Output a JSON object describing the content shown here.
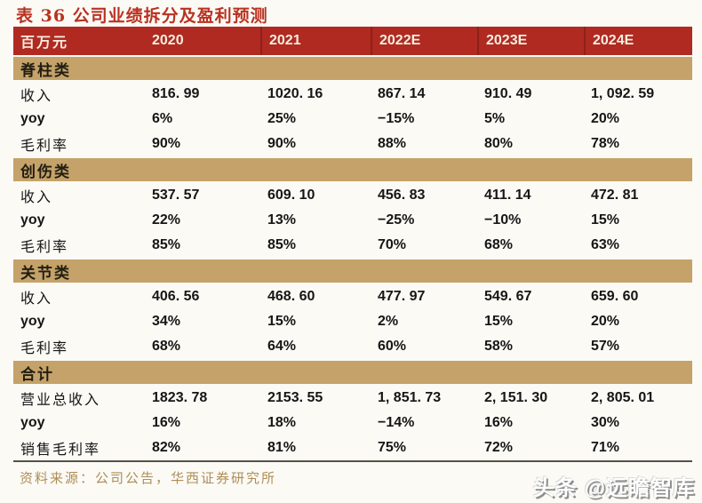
{
  "title": "表 36 公司业绩拆分及盈利预测",
  "table": {
    "unit_label": "百万元",
    "year_headers": [
      "2020",
      "2021",
      "2022E",
      "2023E",
      "2024E"
    ],
    "sections": [
      {
        "name": "脊柱类",
        "rows": [
          {
            "label": "收入",
            "values": [
              "816. 99",
              "1020. 16",
              "867. 14",
              "910. 49",
              "1, 092. 59"
            ]
          },
          {
            "label": "yoy",
            "values": [
              "6%",
              "25%",
              "−15%",
              "5%",
              "20%"
            ]
          },
          {
            "label": "毛利率",
            "values": [
              "90%",
              "90%",
              "88%",
              "80%",
              "78%"
            ]
          }
        ]
      },
      {
        "name": "创伤类",
        "rows": [
          {
            "label": "收入",
            "values": [
              "537. 57",
              "609. 10",
              "456. 83",
              "411. 14",
              "472. 81"
            ]
          },
          {
            "label": "yoy",
            "values": [
              "22%",
              "13%",
              "−25%",
              "−10%",
              "15%"
            ]
          },
          {
            "label": "毛利率",
            "values": [
              "85%",
              "85%",
              "70%",
              "68%",
              "63%"
            ]
          }
        ]
      },
      {
        "name": "关节类",
        "rows": [
          {
            "label": "收入",
            "values": [
              "406. 56",
              "468. 60",
              "477. 97",
              "549. 67",
              "659. 60"
            ]
          },
          {
            "label": "yoy",
            "values": [
              "34%",
              "15%",
              "2%",
              "15%",
              "20%"
            ]
          },
          {
            "label": "毛利率",
            "values": [
              "68%",
              "64%",
              "60%",
              "58%",
              "57%"
            ]
          }
        ]
      },
      {
        "name": "合计",
        "rows": [
          {
            "label": "营业总收入",
            "values": [
              "1823. 78",
              "2153. 55",
              "1, 851. 73",
              "2, 151. 30",
              "2, 805. 01"
            ]
          },
          {
            "label": "yoy",
            "values": [
              "16%",
              "18%",
              "−14%",
              "16%",
              "30%"
            ]
          },
          {
            "label": "销售毛利率",
            "values": [
              "82%",
              "81%",
              "75%",
              "72%",
              "71%"
            ]
          }
        ]
      }
    ]
  },
  "footer": {
    "source": "资料来源：公司公告，华西证券研究所"
  },
  "watermark": "头条 @远瞻智库",
  "colors": {
    "header_red": "#b02a22",
    "header_divider_red": "#8c211a",
    "band_tan": "#c4a269",
    "title_red": "#b93222",
    "source_gold": "#ad8e58",
    "body_text": "#161616",
    "page_background": "#fbfaf5"
  }
}
